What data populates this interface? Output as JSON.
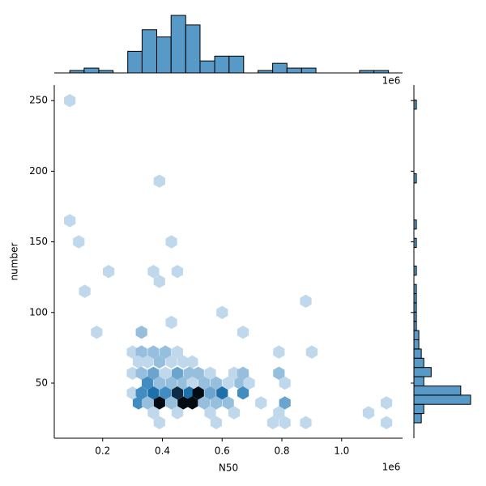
{
  "chart_data": {
    "type": "hexbin",
    "xlabel": "N50",
    "ylabel": "number",
    "offset_label": "1e6",
    "color": "#1f77b4",
    "xlim": [
      0.038,
      1.204
    ],
    "ylim": [
      11,
      261
    ],
    "xticks": [
      0.2,
      0.4,
      0.6,
      0.8,
      {
        "value": 1,
        "label": "1.0"
      }
    ],
    "yticks": [
      50,
      100,
      150,
      200,
      250
    ],
    "x": [
      0.09,
      0.39,
      0.09,
      0.12,
      0.43,
      0.22,
      0.37,
      0.45,
      0.39,
      0.14,
      0.88,
      0.6,
      0.43,
      0.18,
      0.33,
      0.67,
      0.3,
      0.33,
      0.37,
      0.41,
      0.45,
      0.79,
      0.9,
      0.32,
      0.35,
      0.39,
      0.43,
      0.47,
      0.5,
      0.3,
      0.33,
      0.37,
      0.41,
      0.45,
      0.49,
      0.52,
      0.56,
      0.64,
      0.67,
      0.79,
      0.35,
      0.39,
      0.43,
      0.47,
      0.5,
      0.54,
      0.58,
      0.62,
      0.66,
      0.69,
      0.81,
      0.3,
      0.33,
      0.37,
      0.41,
      0.45,
      0.49,
      0.52,
      0.56,
      0.6,
      0.67,
      0.32,
      0.35,
      0.39,
      0.43,
      0.47,
      0.5,
      0.54,
      0.58,
      0.62,
      0.73,
      0.81,
      1.15,
      0.37,
      0.45,
      0.56,
      0.64,
      0.79,
      1.09,
      0.39,
      0.58,
      0.77,
      0.81,
      0.88,
      1.15
    ],
    "y": [
      250,
      193,
      165,
      150,
      150,
      129,
      129,
      129,
      122,
      115,
      108,
      100,
      93,
      86,
      86,
      86,
      72,
      72,
      72,
      72,
      72,
      72,
      72,
      65,
      65,
      65,
      65,
      65,
      65,
      57,
      57,
      57,
      57,
      57,
      57,
      57,
      57,
      57,
      57,
      57,
      50,
      50,
      50,
      50,
      50,
      50,
      50,
      50,
      50,
      50,
      50,
      43,
      43,
      43,
      43,
      43,
      43,
      43,
      43,
      43,
      43,
      36,
      36,
      36,
      36,
      36,
      36,
      36,
      36,
      36,
      36,
      36,
      36,
      29,
      29,
      29,
      29,
      29,
      29,
      22,
      22,
      22,
      22,
      22,
      22
    ],
    "counts": [
      1,
      1,
      1,
      1,
      1,
      1,
      1,
      1,
      1,
      1,
      1,
      1,
      1,
      1,
      2,
      1,
      1,
      2,
      2,
      2,
      1,
      1,
      1,
      1,
      1,
      2,
      1,
      1,
      1,
      1,
      2,
      3,
      1,
      3,
      2,
      2,
      1,
      1,
      2,
      2,
      4,
      2,
      2,
      2,
      1,
      2,
      2,
      1,
      2,
      1,
      1,
      1,
      4,
      5,
      4,
      7,
      5,
      8,
      3,
      5,
      4,
      4,
      2,
      8,
      2,
      8,
      8,
      2,
      2,
      2,
      1,
      3,
      1,
      1,
      1,
      1,
      1,
      1,
      1,
      1,
      1,
      1,
      1,
      1,
      1
    ],
    "marginal_x": {
      "bins": [
        0.09,
        0.138,
        0.187,
        0.235,
        0.284,
        0.332,
        0.381,
        0.429,
        0.478,
        0.526,
        0.575,
        0.623,
        0.672,
        0.72,
        0.769,
        0.817,
        0.866,
        0.914,
        0.963,
        1.011,
        1.06,
        1.108,
        1.157
      ],
      "counts": [
        1,
        2,
        1,
        0,
        9,
        18,
        15,
        24,
        20,
        5,
        7,
        7,
        0,
        1,
        4,
        2,
        2,
        0,
        0,
        0,
        1,
        1
      ]
    },
    "marginal_y": {
      "bins": [
        21.9,
        28.43,
        34.96,
        41.49,
        48.02,
        54.55,
        61.08,
        67.61,
        74.14,
        80.67,
        87.2,
        93.73,
        100.26,
        106.79,
        113.32,
        119.85,
        126.38,
        132.91,
        139.44,
        145.97,
        152.5,
        159.03,
        165.56,
        172.09,
        178.62,
        185.15,
        191.68,
        198.21,
        204.74,
        211.27,
        217.8,
        224.33,
        230.86,
        237.39,
        243.92,
        250.45,
        256.98
      ],
      "counts": [
        3,
        4,
        23,
        19,
        4,
        7,
        4,
        3,
        2,
        2,
        1,
        1,
        1,
        1,
        1,
        0,
        1,
        0,
        0,
        1,
        0,
        1,
        0,
        0,
        0,
        0,
        1,
        0,
        0,
        0,
        0,
        0,
        0,
        0,
        1,
        0
      ]
    }
  }
}
